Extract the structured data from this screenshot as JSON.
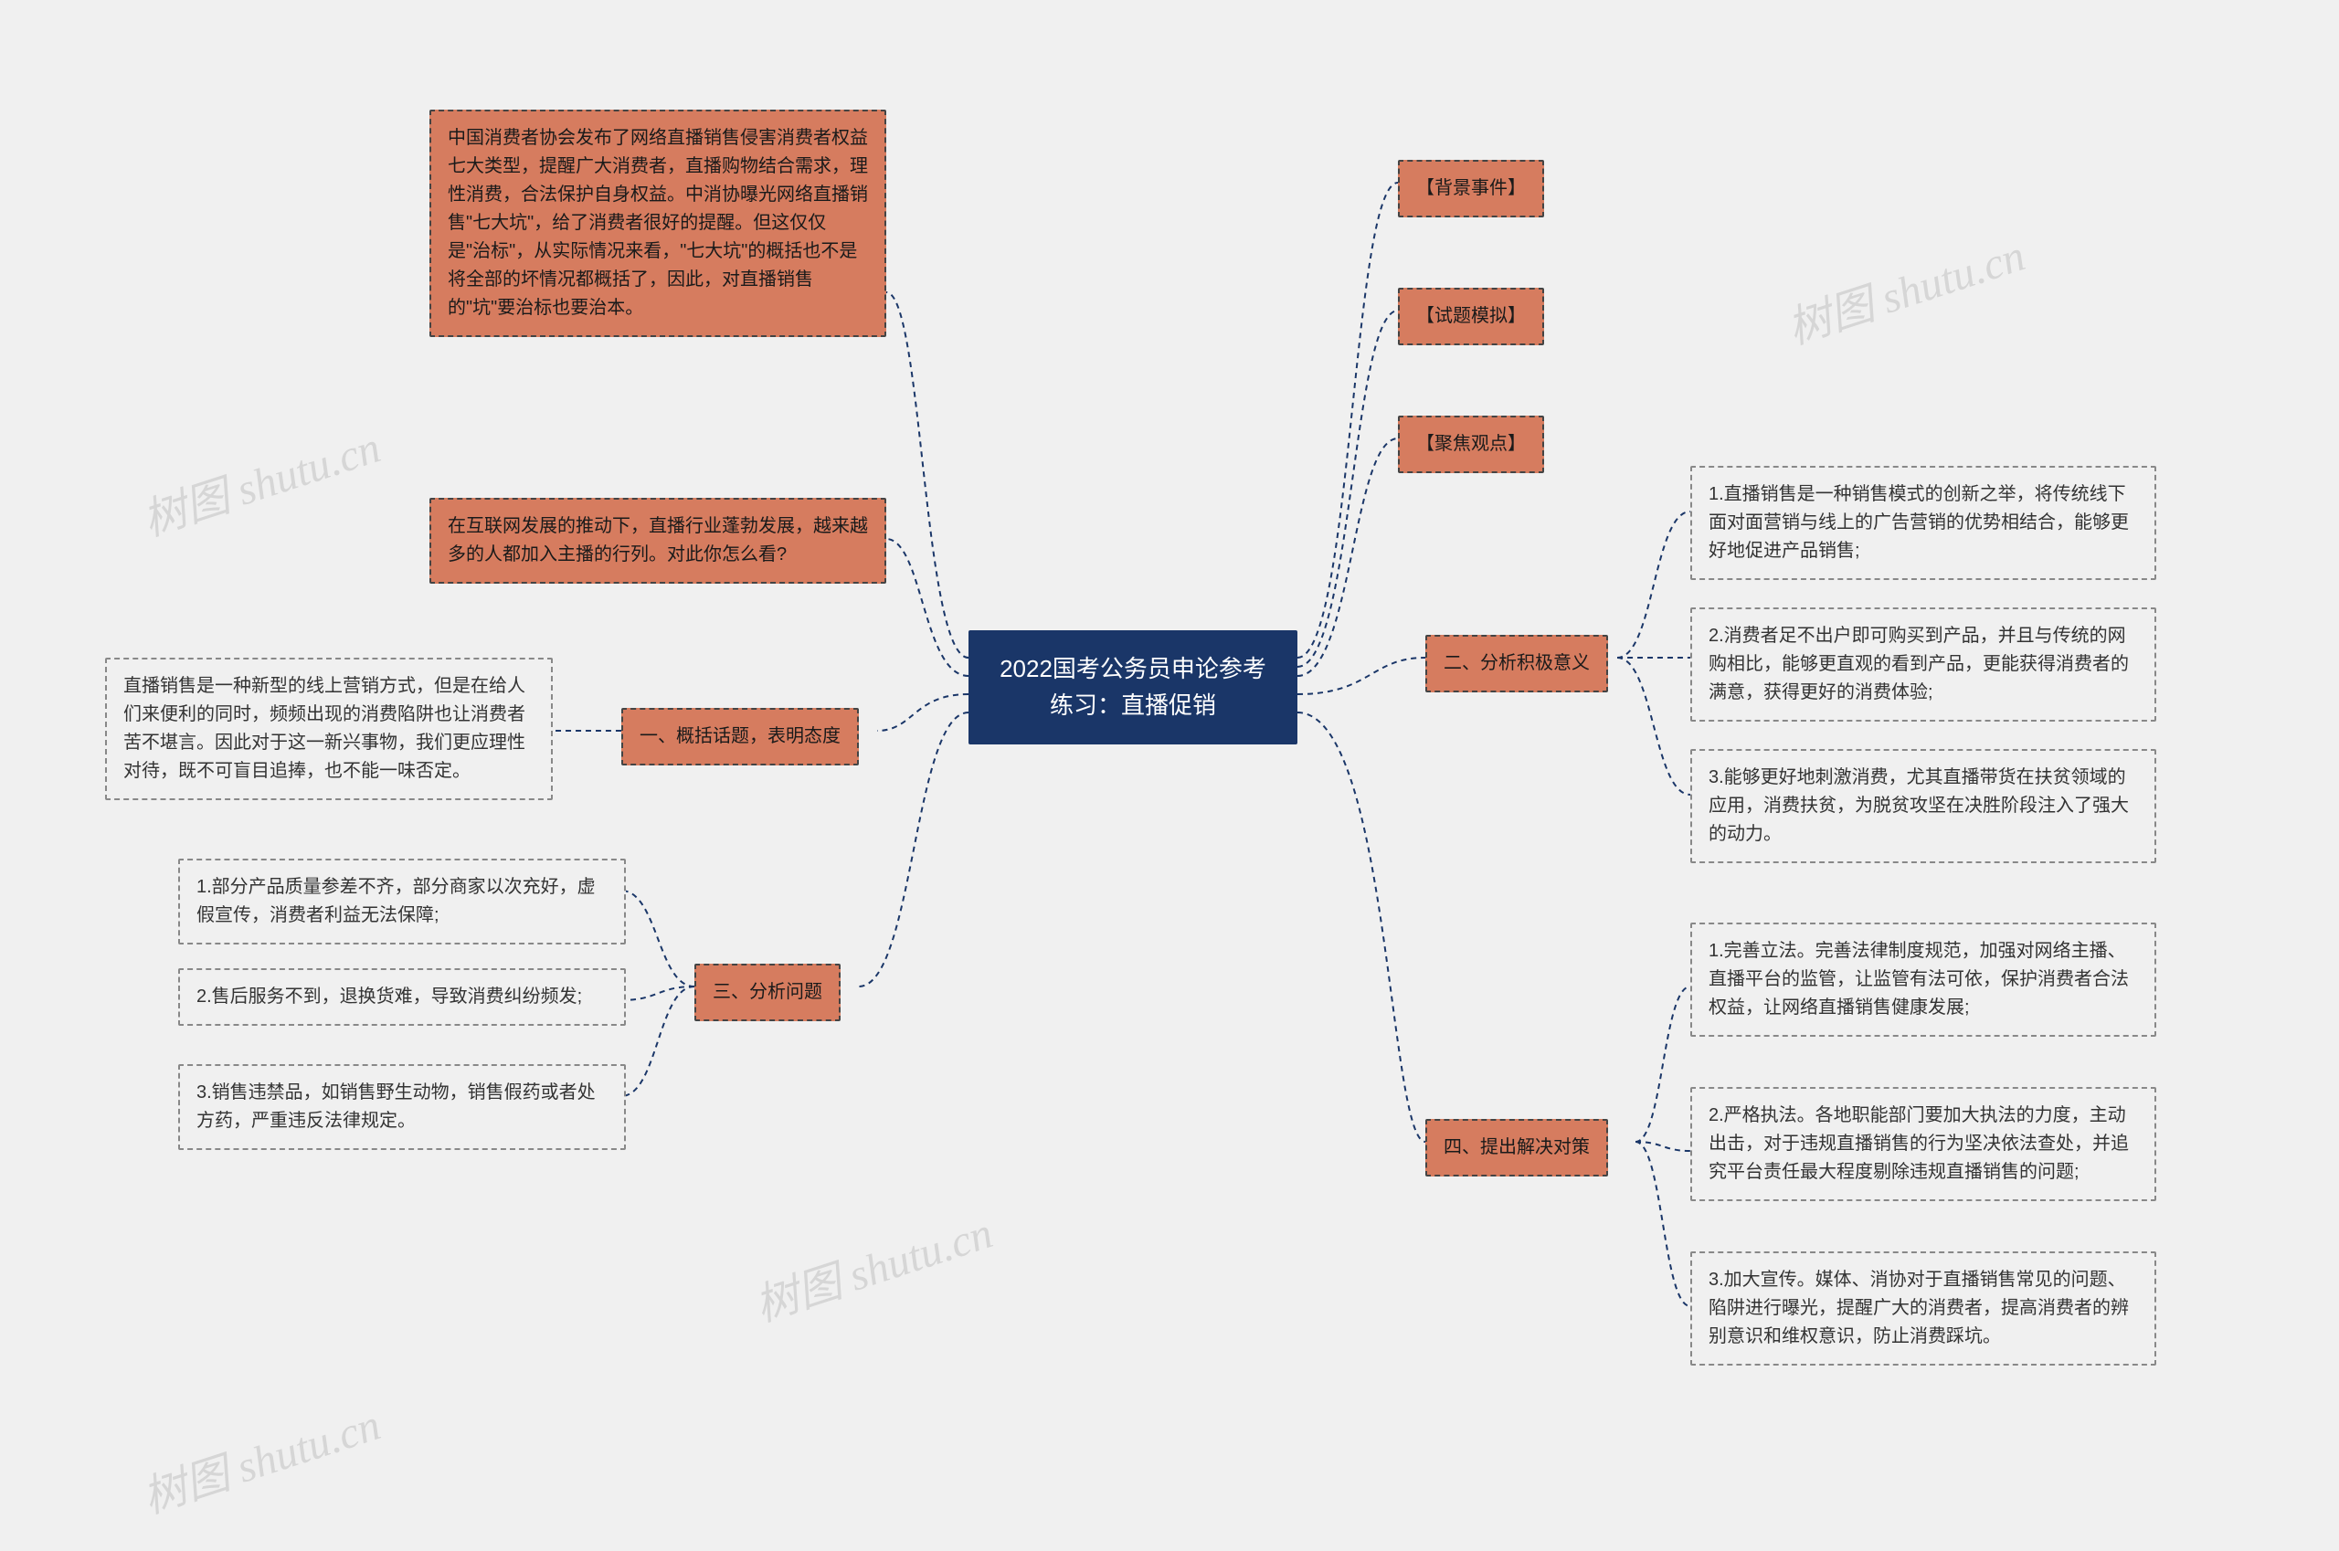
{
  "root": {
    "title": "2022国考公务员申论参考\n练习：直播促销",
    "bg": "#1a3668",
    "fg": "#ffffff"
  },
  "colors": {
    "orange_bg": "#d67c5f",
    "orange_fg": "#1a1a1a",
    "plain_bg": "#f0f0f0",
    "plain_fg": "#333333",
    "connector": "#1a3668",
    "page_bg": "#f0f0f0",
    "watermark": "#c9c9c9"
  },
  "left": {
    "big_block": "中国消费者协会发布了网络直播销售侵害消费者权益七大类型，提醒广大消费者，直播购物结合需求，理性消费，合法保护自身权益。中消协曝光网络直播销售\"七大坑\"，给了消费者很好的提醒。但这仅仅是\"治标\"，从实际情况来看，\"七大坑\"的概括也不是将全部的坏情况都概括了，因此，对直播销售的\"坑\"要治标也要治本。",
    "internet_block": "在互联网发展的推动下，直播行业蓬勃发展，越来越多的人都加入主播的行列。对此你怎么看?",
    "section1_label": "一、概括话题，表明态度",
    "section1_text": "直播销售是一种新型的线上营销方式，但是在给人们来便利的同时，频频出现的消费陷阱也让消费者苦不堪言。因此对于这一新兴事物，我们更应理性对待，既不可盲目追捧，也不能一味否定。",
    "section3_label": "三、分析问题",
    "section3_items": [
      "1.部分产品质量参差不齐，部分商家以次充好，虚假宣传，消费者利益无法保障;",
      "2.售后服务不到，退换货难，导致消费纠纷频发;",
      "3.销售违禁品，如销售野生动物，销售假药或者处方药，严重违反法律规定。"
    ]
  },
  "right": {
    "top_items": [
      "【背景事件】",
      "【试题模拟】",
      "【聚焦观点】"
    ],
    "section2_label": "二、分析积极意义",
    "section2_items": [
      "1.直播销售是一种销售模式的创新之举，将传统线下面对面营销与线上的广告营销的优势相结合，能够更好地促进产品销售;",
      "2.消费者足不出户即可购买到产品，并且与传统的网购相比，能够更直观的看到产品，更能获得消费者的满意，获得更好的消费体验;",
      "3.能够更好地刺激消费，尤其直播带货在扶贫领域的应用，消费扶贫，为脱贫攻坚在决胜阶段注入了强大的动力。"
    ],
    "section4_label": "四、提出解决对策",
    "section4_items": [
      "1.完善立法。完善法律制度规范，加强对网络主播、直播平台的监管，让监管有法可依，保护消费者合法权益，让网络直播销售健康发展;",
      "2.严格执法。各地职能部门要加大执法的力度，主动出击，对于违规直播销售的行为坚决依法查处，并追究平台责任最大程度剔除违规直播销售的问题;",
      "3.加大宣传。媒体、消协对于直播销售常见的问题、陷阱进行曝光，提醒广大的消费者，提高消费者的辨别意识和维权意识，防止消费踩坑。"
    ]
  },
  "watermarks": [
    "树图 shutu.cn",
    "树图 shutu.cn",
    "树图 shutu.cn",
    "树图 shutu.cn"
  ]
}
